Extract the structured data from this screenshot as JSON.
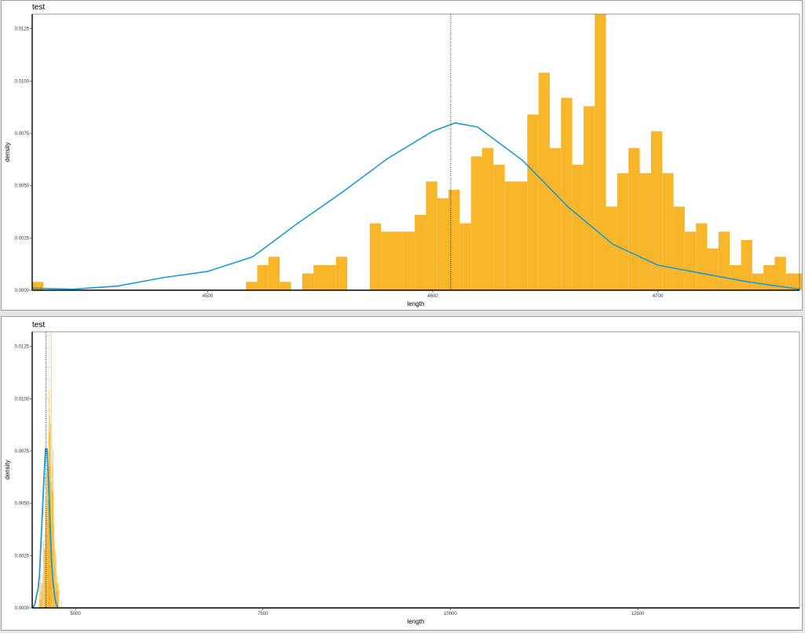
{
  "colors": {
    "bar": "#F7B52A",
    "density": "#1A9BD7",
    "mean_line": "#000000",
    "panel_background": "#FFFFFF",
    "window_background": "#E6E6E6"
  },
  "chart_data": [
    {
      "type": "bar",
      "chart_subtype": "histogram with density curve",
      "title": "test",
      "xlabel": "length",
      "ylabel": "density",
      "xlim": [
        4422,
        4763
      ],
      "ylim": [
        0,
        0.0132
      ],
      "x_ticks": [
        4500,
        4600,
        4700
      ],
      "x_tick_labels": [
        "4500",
        "4600",
        "4700"
      ],
      "y_ticks": [
        0,
        0.0025,
        0.005,
        0.0075,
        0.01,
        0.0125
      ],
      "y_tick_labels": [
        "0.0000",
        "0.0025",
        "0.0050",
        "0.0075",
        "0.0100",
        "0.0125"
      ],
      "grid": false,
      "legend": "none",
      "bin_width": 5,
      "bins_start": 4422,
      "bar_values": [
        0.0004,
        0,
        0,
        0,
        0,
        0,
        0,
        0,
        0,
        0,
        0,
        0,
        0,
        0,
        0,
        0,
        0,
        0,
        0,
        0.0004,
        0.0012,
        0.0016,
        0.0004,
        0,
        0.0008,
        0.0012,
        0.0012,
        0.0016,
        0,
        0,
        0.0032,
        0.0028,
        0.0028,
        0.0028,
        0.0036,
        0.0052,
        0.0044,
        0.0048,
        0.0032,
        0.0064,
        0.0068,
        0.006,
        0.0052,
        0.0052,
        0.0084,
        0.0104,
        0.0068,
        0.0092,
        0.006,
        0.0088,
        0.0132,
        0.004,
        0.0056,
        0.0068,
        0.0056,
        0.0076,
        0.0056,
        0.004,
        0.0028,
        0.0032,
        0.002,
        0.0028,
        0.0012,
        0.0024,
        0.0008,
        0.0012,
        0.0016,
        0.0008,
        0.0008,
        0,
        0.0012,
        0.0008,
        0,
        0,
        0,
        0,
        0,
        0.0004
      ],
      "density_curve": {
        "x": [
          4422,
          4440,
          4460,
          4480,
          4500,
          4520,
          4540,
          4560,
          4580,
          4600,
          4610,
          4620,
          4640,
          4660,
          4680,
          4700,
          4720,
          4740,
          4763
        ],
        "y": [
          0.0001,
          5e-05,
          0.0002,
          0.0006,
          0.0009,
          0.0016,
          0.0032,
          0.0047,
          0.0063,
          0.0076,
          0.008,
          0.0078,
          0.0062,
          0.004,
          0.0022,
          0.0012,
          0.0008,
          0.0004,
          5e-05
        ]
      },
      "mean_line_x": 4608
    },
    {
      "type": "bar",
      "chart_subtype": "histogram with density curve",
      "title": "test",
      "xlabel": "length",
      "ylabel": "density",
      "xlim": [
        4422,
        14658
      ],
      "ylim": [
        0,
        0.0132
      ],
      "x_ticks": [
        5000,
        7500,
        10000,
        12500
      ],
      "x_tick_labels": [
        "5000",
        "7500",
        "10000",
        "12500"
      ],
      "y_ticks": [
        0,
        0.0025,
        0.005,
        0.0075,
        0.01,
        0.0125
      ],
      "y_tick_labels": [
        "0.0000",
        "0.0025",
        "0.0050",
        "0.0075",
        "0.0100",
        "0.0125"
      ],
      "grid": false,
      "legend": "none",
      "bin_width": 5,
      "bins_start": 4422,
      "bar_values": [
        0.0004,
        0,
        0,
        0,
        0,
        0,
        0,
        0,
        0,
        0,
        0,
        0,
        0,
        0,
        0,
        0,
        0,
        0,
        0,
        0.0004,
        0.0012,
        0.0016,
        0.0004,
        0,
        0.0008,
        0.0012,
        0.0012,
        0.0016,
        0,
        0,
        0.0032,
        0.0028,
        0.0028,
        0.0028,
        0.0036,
        0.0052,
        0.0044,
        0.0048,
        0.0032,
        0.0064,
        0.0068,
        0.006,
        0.0052,
        0.0052,
        0.0084,
        0.0104,
        0.0068,
        0.0092,
        0.006,
        0.0088,
        0.0132,
        0.004,
        0.0056,
        0.0068,
        0.0056,
        0.0076,
        0.0056,
        0.004,
        0.0028,
        0.0032,
        0.002,
        0.0028,
        0.0012,
        0.0024,
        0.0008,
        0.0012,
        0.0016,
        0.0008,
        0.0008,
        0,
        0.0012,
        0.0008,
        0,
        0,
        0,
        0,
        0,
        0.0004
      ],
      "density_curve": {
        "x": [
          4422,
          4440,
          4460,
          4480,
          4500,
          4520,
          4540,
          4560,
          4580,
          4600,
          4620,
          4640,
          4660,
          4680,
          4700,
          4720,
          4740,
          4763
        ],
        "y": [
          0.0001,
          5e-05,
          0.0002,
          0.0006,
          0.0009,
          0.0016,
          0.0032,
          0.0047,
          0.0063,
          0.0076,
          0.0076,
          0.006,
          0.004,
          0.0022,
          0.0012,
          0.0006,
          0.0002,
          2e-05
        ]
      },
      "mean_line_x": 4608
    }
  ]
}
